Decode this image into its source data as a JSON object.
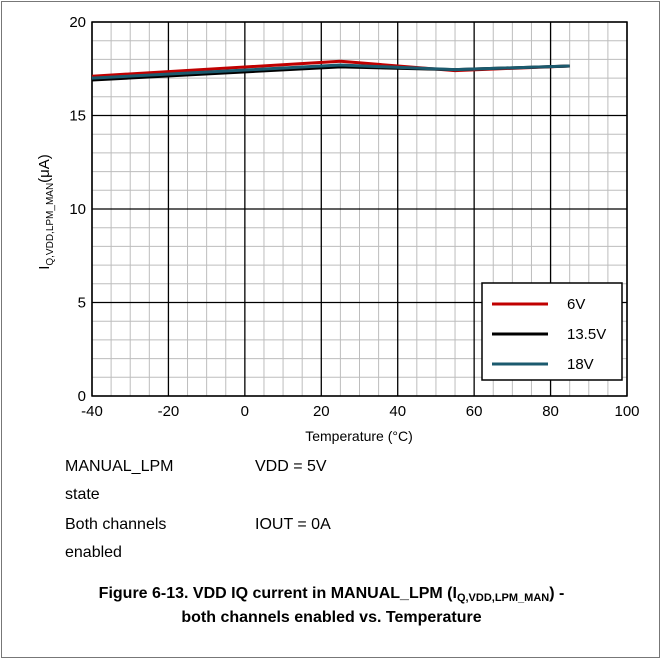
{
  "chart_data": {
    "type": "line",
    "xlabel": "Temperature (°C)",
    "ylabel_main": "I",
    "ylabel_sub": "Q,VDD,LPM_MAN",
    "ylabel_unit": "(μA)",
    "xlim": [
      -40,
      100
    ],
    "ylim": [
      0,
      20
    ],
    "xticks": [
      -40,
      -20,
      0,
      20,
      40,
      60,
      80,
      100
    ],
    "yticks": [
      0,
      5,
      10,
      15,
      20
    ],
    "grid": true,
    "legend_position": "bottom-right",
    "series": [
      {
        "name": "6V",
        "color": "#c00000",
        "x": [
          -40,
          25,
          55,
          85
        ],
        "y": [
          17.1,
          17.9,
          17.4,
          17.65
        ]
      },
      {
        "name": "13.5V",
        "color": "#000000",
        "x": [
          -40,
          25,
          55,
          85
        ],
        "y": [
          16.9,
          17.6,
          17.45,
          17.65
        ]
      },
      {
        "name": "18V",
        "color": "#1b5a6e",
        "x": [
          -40,
          25,
          55,
          85
        ],
        "y": [
          17.0,
          17.7,
          17.45,
          17.65
        ]
      }
    ]
  },
  "notes": {
    "left_1a": "MANUAL_LPM",
    "left_1b": "state",
    "right_1": "VDD = 5V",
    "left_2a": "Both channels",
    "left_2b": "enabled",
    "right_2": "IOUT = 0A"
  },
  "caption": {
    "line1_prefix": "Figure 6-13. VDD IQ current in MANUAL_LPM (I",
    "line1_sub": "Q,VDD,LPM_MAN",
    "line1_suffix": ") -",
    "line2": "both channels enabled vs. Temperature"
  }
}
